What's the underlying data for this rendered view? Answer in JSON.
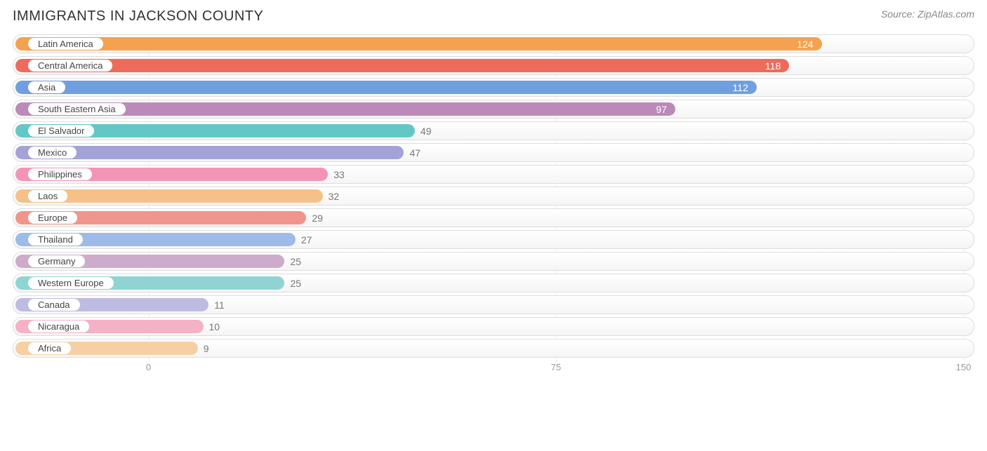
{
  "title": "IMMIGRANTS IN JACKSON COUNTY",
  "source_prefix": "Source: ",
  "source_name": "ZipAtlas.com",
  "chart": {
    "type": "bar-horizontal",
    "xmin": -25,
    "xmax": 152,
    "ticks": [
      {
        "value": 0,
        "label": "0"
      },
      {
        "value": 75,
        "label": "75"
      },
      {
        "value": 150,
        "label": "150"
      }
    ],
    "track_border": "#dddddd",
    "track_bg_top": "#ffffff",
    "track_bg_bottom": "#f5f5f5",
    "grid_color": "#eeeeee",
    "label_inside_color": "#ffffff",
    "label_outside_color": "#777777",
    "title_fontsize": 20,
    "source_fontsize": 14,
    "bar_fontsize": 14,
    "pill_fontsize": 13,
    "bars": [
      {
        "category": "Latin America",
        "value": 124,
        "color": "#f4a24f",
        "label_inside": true
      },
      {
        "category": "Central America",
        "value": 118,
        "color": "#ee6a5b",
        "label_inside": true
      },
      {
        "category": "Asia",
        "value": 112,
        "color": "#6f9fde",
        "label_inside": true
      },
      {
        "category": "South Eastern Asia",
        "value": 97,
        "color": "#bb8ab9",
        "label_inside": true
      },
      {
        "category": "El Salvador",
        "value": 49,
        "color": "#64c7c7",
        "label_inside": false
      },
      {
        "category": "Mexico",
        "value": 47,
        "color": "#a4a3d7",
        "label_inside": false
      },
      {
        "category": "Philippines",
        "value": 33,
        "color": "#f494b5",
        "label_inside": false
      },
      {
        "category": "Laos",
        "value": 32,
        "color": "#f6c188",
        "label_inside": false
      },
      {
        "category": "Europe",
        "value": 29,
        "color": "#f1948b",
        "label_inside": false
      },
      {
        "category": "Thailand",
        "value": 27,
        "color": "#9dbbe6",
        "label_inside": false
      },
      {
        "category": "Germany",
        "value": 25,
        "color": "#ccabcb",
        "label_inside": false
      },
      {
        "category": "Western Europe",
        "value": 25,
        "color": "#8fd4d2",
        "label_inside": false
      },
      {
        "category": "Canada",
        "value": 11,
        "color": "#bdbbe2",
        "label_inside": false
      },
      {
        "category": "Nicaragua",
        "value": 10,
        "color": "#f5b1c6",
        "label_inside": false
      },
      {
        "category": "Africa",
        "value": 9,
        "color": "#f6d0a4",
        "label_inside": false
      }
    ]
  }
}
